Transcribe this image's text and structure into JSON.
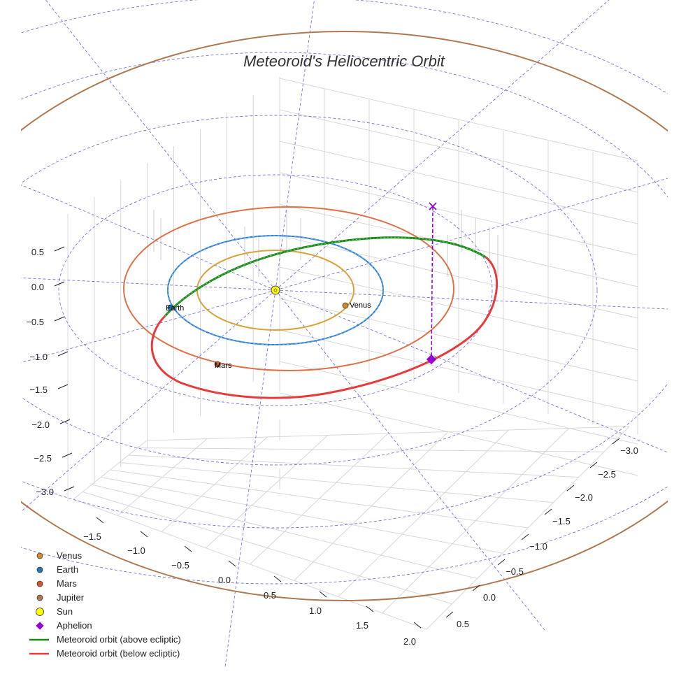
{
  "chart_data": {
    "type": "3d-orbit",
    "title": "Meteoroid's Heliocentric Orbit",
    "axes": {
      "x_ticks": [
        "−1.5",
        "−1.0",
        "−0.5",
        "0.0",
        "0.5",
        "1.0",
        "1.5",
        "2.0"
      ],
      "y_ticks": [
        "−3.0",
        "−2.5",
        "−2.0",
        "−1.5",
        "−1.0",
        "−0.5",
        "0.0",
        "0.5"
      ],
      "z_ticks": [
        "0.5",
        "0.0",
        "−0.5",
        "−1.0",
        "−1.5",
        "−2.0",
        "−2.5",
        "−3.0"
      ]
    },
    "planets": [
      {
        "name": "Venus",
        "semi_major_axis_au": 0.72,
        "color": "#d08a2a"
      },
      {
        "name": "Earth",
        "semi_major_axis_au": 1.0,
        "color": "#1f77b4"
      },
      {
        "name": "Mars",
        "semi_major_axis_au": 1.52,
        "color": "#d4572a"
      },
      {
        "name": "Jupiter",
        "semi_major_axis_au": 5.2,
        "color": "#b07850"
      }
    ],
    "sun": {
      "name": "Sun",
      "color": "#ffff00"
    },
    "aphelion": {
      "name": "Aphelion",
      "color": "#9400d3"
    },
    "meteoroid": {
      "above_color": "#1a8a1a",
      "below_color": "#e83a3a"
    },
    "legend": [
      {
        "label": "Venus",
        "marker": "circle",
        "color": "#d08a2a"
      },
      {
        "label": "Earth",
        "marker": "circle",
        "color": "#1f77b4"
      },
      {
        "label": "Mars",
        "marker": "circle",
        "color": "#d4572a"
      },
      {
        "label": "Jupiter",
        "marker": "circle",
        "color": "#b07850"
      },
      {
        "label": "Sun",
        "marker": "circle-large",
        "color": "#ffff00"
      },
      {
        "label": "Aphelion",
        "marker": "diamond",
        "color": "#9400d3"
      },
      {
        "label": "Meteoroid orbit (above ecliptic)",
        "marker": "line",
        "color": "#1a8a1a"
      },
      {
        "label": "Meteoroid orbit (below ecliptic)",
        "marker": "line",
        "color": "#e83a3a"
      }
    ]
  }
}
